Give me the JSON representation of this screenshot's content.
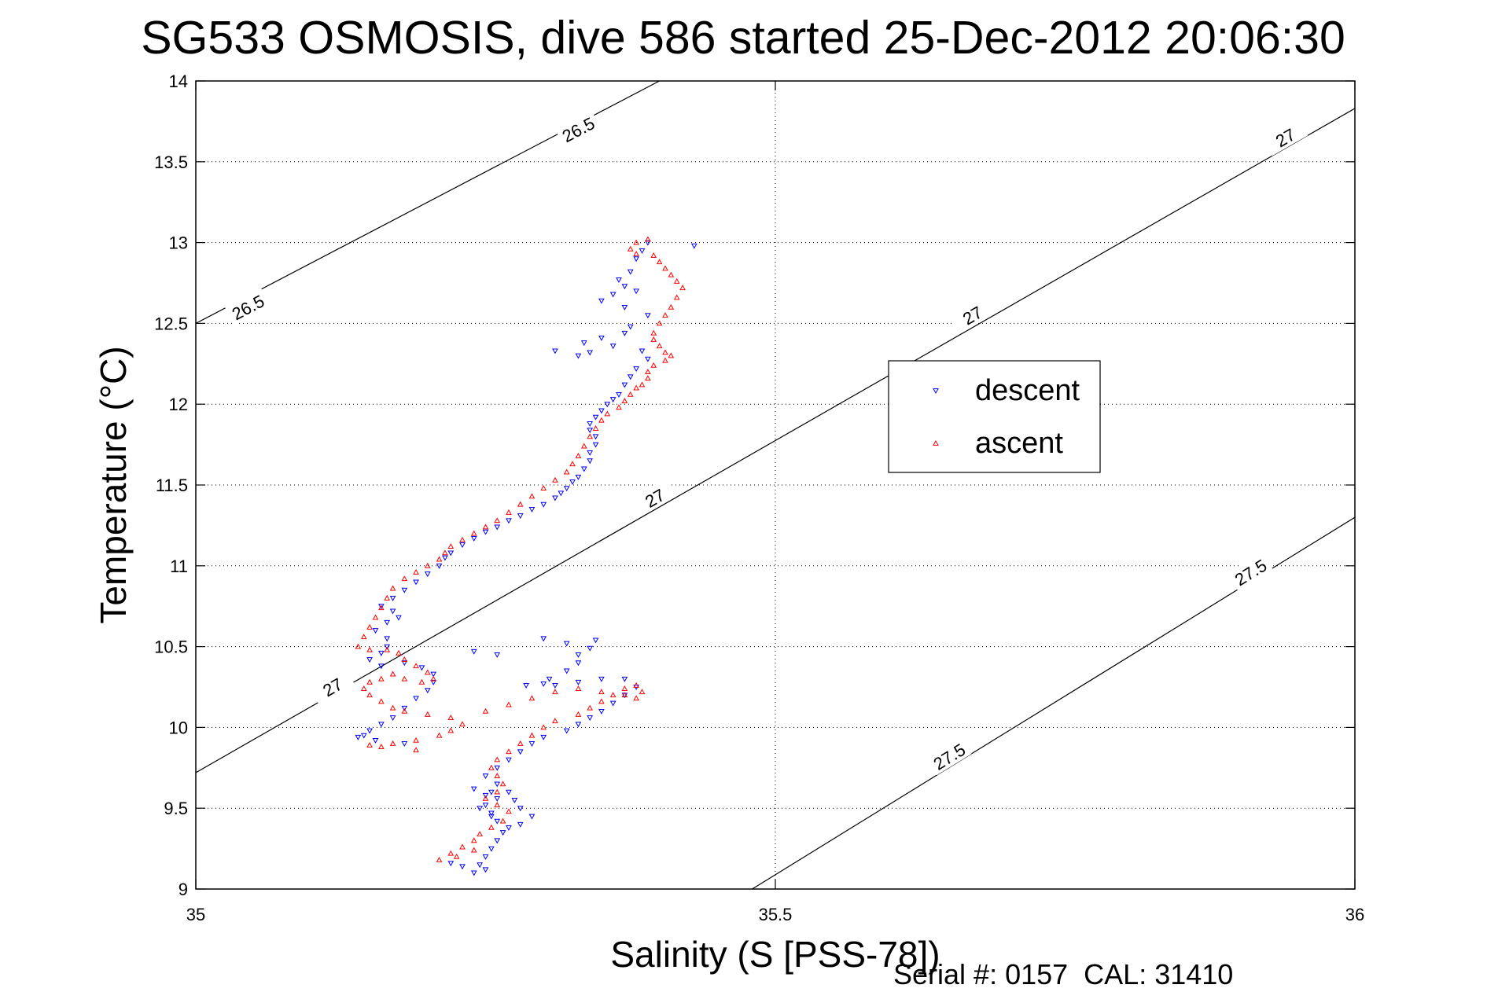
{
  "chart_data": {
    "type": "scatter",
    "title": "SG533 OSMOSIS, dive 586 started 25-Dec-2012 20:06:30",
    "xlabel": "Salinity (S [PSS-78])",
    "ylabel": "Temperature (°C)",
    "xlim": [
      35,
      36
    ],
    "ylim": [
      9,
      14
    ],
    "x_ticks": [
      "35",
      "35.5",
      "36"
    ],
    "y_ticks": [
      "9",
      "9.5",
      "10",
      "10.5",
      "11",
      "11.5",
      "12",
      "12.5",
      "13",
      "13.5",
      "14"
    ],
    "grid": true,
    "legend_placement": "right-center",
    "footer": "Serial #: 0157  CAL: 31410",
    "isopycnals": [
      {
        "label": "26.5",
        "points": [
          [
            35.0,
            12.5
          ],
          [
            35.4,
            14.0
          ]
        ]
      },
      {
        "label": "27",
        "points": [
          [
            35.0,
            9.72
          ],
          [
            36.0,
            13.83
          ]
        ]
      },
      {
        "label": "27.5",
        "points": [
          [
            35.48,
            9.0
          ],
          [
            36.0,
            11.3
          ]
        ]
      }
    ],
    "contour_labels": [
      {
        "text": "26.5",
        "x": 35.33,
        "y": 13.7
      },
      {
        "text": "26.5",
        "x": 35.045,
        "y": 12.6
      },
      {
        "text": "27",
        "x": 35.118,
        "y": 10.25
      },
      {
        "text": "27",
        "x": 35.396,
        "y": 11.42
      },
      {
        "text": "27",
        "x": 35.67,
        "y": 12.55
      },
      {
        "text": "27",
        "x": 35.94,
        "y": 13.65
      },
      {
        "text": "27.5",
        "x": 35.65,
        "y": 9.82
      },
      {
        "text": "27.5",
        "x": 35.91,
        "y": 10.96
      }
    ],
    "series": [
      {
        "name": "descent",
        "color": "#0000ff",
        "marker": "triangle-down",
        "points": [
          [
            35.43,
            12.98
          ],
          [
            35.39,
            13.0
          ],
          [
            35.385,
            12.95
          ],
          [
            35.38,
            12.9
          ],
          [
            35.375,
            12.82
          ],
          [
            35.365,
            12.77
          ],
          [
            35.37,
            12.73
          ],
          [
            35.38,
            12.7
          ],
          [
            35.36,
            12.68
          ],
          [
            35.35,
            12.64
          ],
          [
            35.37,
            12.6
          ],
          [
            35.39,
            12.55
          ],
          [
            35.375,
            12.48
          ],
          [
            35.37,
            12.44
          ],
          [
            35.35,
            12.41
          ],
          [
            35.335,
            12.38
          ],
          [
            35.31,
            12.33
          ],
          [
            35.33,
            12.3
          ],
          [
            35.34,
            12.32
          ],
          [
            35.36,
            12.36
          ],
          [
            35.385,
            12.33
          ],
          [
            35.39,
            12.28
          ],
          [
            35.38,
            12.22
          ],
          [
            35.375,
            12.17
          ],
          [
            35.37,
            12.12
          ],
          [
            35.365,
            12.06
          ],
          [
            35.36,
            12.03
          ],
          [
            35.355,
            12.0
          ],
          [
            35.35,
            11.96
          ],
          [
            35.345,
            11.92
          ],
          [
            35.34,
            11.88
          ],
          [
            35.34,
            11.84
          ],
          [
            35.345,
            11.8
          ],
          [
            35.345,
            11.75
          ],
          [
            35.34,
            11.7
          ],
          [
            35.34,
            11.65
          ],
          [
            35.335,
            11.6
          ],
          [
            35.33,
            11.55
          ],
          [
            35.325,
            11.52
          ],
          [
            35.32,
            11.48
          ],
          [
            35.315,
            11.45
          ],
          [
            35.31,
            11.42
          ],
          [
            35.3,
            11.38
          ],
          [
            35.29,
            11.35
          ],
          [
            35.28,
            11.31
          ],
          [
            35.27,
            11.28
          ],
          [
            35.26,
            11.24
          ],
          [
            35.25,
            11.21
          ],
          [
            35.24,
            11.17
          ],
          [
            35.23,
            11.13
          ],
          [
            35.22,
            11.08
          ],
          [
            35.215,
            11.05
          ],
          [
            35.21,
            11.0
          ],
          [
            35.2,
            10.95
          ],
          [
            35.19,
            10.9
          ],
          [
            35.18,
            10.85
          ],
          [
            35.17,
            10.8
          ],
          [
            35.16,
            10.75
          ],
          [
            35.17,
            10.72
          ],
          [
            35.175,
            10.68
          ],
          [
            35.165,
            10.65
          ],
          [
            35.155,
            10.6
          ],
          [
            35.165,
            10.55
          ],
          [
            35.165,
            10.5
          ],
          [
            35.16,
            10.46
          ],
          [
            35.15,
            10.42
          ],
          [
            35.16,
            10.38
          ],
          [
            35.18,
            10.4
          ],
          [
            35.195,
            10.37
          ],
          [
            35.205,
            10.33
          ],
          [
            35.205,
            10.28
          ],
          [
            35.2,
            10.23
          ],
          [
            35.19,
            10.18
          ],
          [
            35.18,
            10.12
          ],
          [
            35.17,
            10.06
          ],
          [
            35.16,
            10.02
          ],
          [
            35.15,
            9.98
          ],
          [
            35.145,
            9.95
          ],
          [
            35.14,
            9.94
          ],
          [
            35.155,
            9.92
          ],
          [
            35.18,
            9.9
          ],
          [
            35.24,
            10.47
          ],
          [
            35.26,
            10.45
          ],
          [
            35.3,
            10.55
          ],
          [
            35.32,
            10.52
          ],
          [
            35.345,
            10.54
          ],
          [
            35.34,
            10.49
          ],
          [
            35.33,
            10.45
          ],
          [
            35.33,
            10.4
          ],
          [
            35.32,
            10.35
          ],
          [
            35.305,
            10.3
          ],
          [
            35.3,
            10.27
          ],
          [
            35.285,
            10.26
          ],
          [
            35.31,
            10.26
          ],
          [
            35.33,
            10.28
          ],
          [
            35.35,
            10.3
          ],
          [
            35.37,
            10.3
          ],
          [
            35.38,
            10.25
          ],
          [
            35.37,
            10.2
          ],
          [
            35.36,
            10.15
          ],
          [
            35.35,
            10.1
          ],
          [
            35.34,
            10.06
          ],
          [
            35.33,
            10.02
          ],
          [
            35.32,
            9.98
          ],
          [
            35.3,
            9.94
          ],
          [
            35.29,
            9.9
          ],
          [
            35.28,
            9.85
          ],
          [
            35.27,
            9.8
          ],
          [
            35.26,
            9.75
          ],
          [
            35.25,
            9.7
          ],
          [
            35.26,
            9.65
          ],
          [
            35.27,
            9.6
          ],
          [
            35.275,
            9.55
          ],
          [
            35.28,
            9.5
          ],
          [
            35.29,
            9.45
          ],
          [
            35.28,
            9.4
          ],
          [
            35.27,
            9.38
          ],
          [
            35.26,
            9.42
          ],
          [
            35.255,
            9.47
          ],
          [
            35.25,
            9.52
          ],
          [
            35.26,
            9.56
          ],
          [
            35.255,
            9.6
          ],
          [
            35.24,
            9.62
          ],
          [
            35.25,
            9.58
          ],
          [
            35.245,
            9.5
          ],
          [
            35.255,
            9.45
          ],
          [
            35.265,
            9.35
          ],
          [
            35.26,
            9.3
          ],
          [
            35.255,
            9.25
          ],
          [
            35.25,
            9.2
          ],
          [
            35.245,
            9.15
          ],
          [
            35.25,
            9.12
          ],
          [
            35.24,
            9.1
          ],
          [
            35.23,
            9.14
          ],
          [
            35.22,
            9.16
          ]
        ]
      },
      {
        "name": "ascent",
        "color": "#ff0000",
        "marker": "triangle-up",
        "points": [
          [
            35.39,
            13.02
          ],
          [
            35.38,
            13.0
          ],
          [
            35.375,
            12.96
          ],
          [
            35.38,
            12.93
          ],
          [
            35.395,
            12.92
          ],
          [
            35.4,
            12.88
          ],
          [
            35.405,
            12.84
          ],
          [
            35.41,
            12.8
          ],
          [
            35.415,
            12.76
          ],
          [
            35.42,
            12.72
          ],
          [
            35.415,
            12.66
          ],
          [
            35.41,
            12.6
          ],
          [
            35.405,
            12.55
          ],
          [
            35.4,
            12.5
          ],
          [
            35.395,
            12.44
          ],
          [
            35.395,
            12.4
          ],
          [
            35.4,
            12.36
          ],
          [
            35.405,
            12.32
          ],
          [
            35.41,
            12.3
          ],
          [
            35.405,
            12.27
          ],
          [
            35.395,
            12.24
          ],
          [
            35.39,
            12.2
          ],
          [
            35.39,
            12.16
          ],
          [
            35.385,
            12.12
          ],
          [
            35.38,
            12.1
          ],
          [
            35.375,
            12.06
          ],
          [
            35.37,
            12.02
          ],
          [
            35.365,
            11.98
          ],
          [
            35.355,
            11.94
          ],
          [
            35.35,
            11.9
          ],
          [
            35.345,
            11.85
          ],
          [
            35.34,
            11.8
          ],
          [
            35.335,
            11.74
          ],
          [
            35.33,
            11.68
          ],
          [
            35.325,
            11.63
          ],
          [
            35.32,
            11.58
          ],
          [
            35.31,
            11.53
          ],
          [
            35.3,
            11.48
          ],
          [
            35.29,
            11.43
          ],
          [
            35.28,
            11.38
          ],
          [
            35.27,
            11.33
          ],
          [
            35.26,
            11.28
          ],
          [
            35.25,
            11.24
          ],
          [
            35.24,
            11.2
          ],
          [
            35.23,
            11.16
          ],
          [
            35.22,
            11.12
          ],
          [
            35.215,
            11.08
          ],
          [
            35.21,
            11.04
          ],
          [
            35.2,
            11.0
          ],
          [
            35.19,
            10.96
          ],
          [
            35.18,
            10.92
          ],
          [
            35.17,
            10.86
          ],
          [
            35.165,
            10.8
          ],
          [
            35.16,
            10.74
          ],
          [
            35.155,
            10.68
          ],
          [
            35.15,
            10.62
          ],
          [
            35.145,
            10.56
          ],
          [
            35.14,
            10.5
          ],
          [
            35.15,
            10.48
          ],
          [
            35.165,
            10.48
          ],
          [
            35.175,
            10.46
          ],
          [
            35.18,
            10.42
          ],
          [
            35.19,
            10.38
          ],
          [
            35.2,
            10.34
          ],
          [
            35.205,
            10.3
          ],
          [
            35.195,
            10.28
          ],
          [
            35.18,
            10.3
          ],
          [
            35.17,
            10.33
          ],
          [
            35.16,
            10.3
          ],
          [
            35.15,
            10.28
          ],
          [
            35.145,
            10.24
          ],
          [
            35.15,
            10.2
          ],
          [
            35.16,
            10.16
          ],
          [
            35.17,
            10.12
          ],
          [
            35.18,
            10.1
          ],
          [
            35.2,
            10.08
          ],
          [
            35.22,
            10.06
          ],
          [
            35.23,
            10.02
          ],
          [
            35.22,
            9.98
          ],
          [
            35.21,
            9.95
          ],
          [
            35.19,
            9.92
          ],
          [
            35.17,
            9.9
          ],
          [
            35.16,
            9.88
          ],
          [
            35.15,
            9.89
          ],
          [
            35.19,
            9.86
          ],
          [
            35.25,
            10.1
          ],
          [
            35.27,
            10.14
          ],
          [
            35.29,
            10.18
          ],
          [
            35.31,
            10.22
          ],
          [
            35.33,
            10.24
          ],
          [
            35.35,
            10.22
          ],
          [
            35.37,
            10.2
          ],
          [
            35.38,
            10.18
          ],
          [
            35.385,
            10.22
          ],
          [
            35.38,
            10.26
          ],
          [
            35.37,
            10.24
          ],
          [
            35.36,
            10.2
          ],
          [
            35.35,
            10.16
          ],
          [
            35.34,
            10.12
          ],
          [
            35.33,
            10.08
          ],
          [
            35.31,
            10.04
          ],
          [
            35.3,
            10.0
          ],
          [
            35.29,
            9.95
          ],
          [
            35.28,
            9.9
          ],
          [
            35.27,
            9.85
          ],
          [
            35.26,
            9.8
          ],
          [
            35.255,
            9.75
          ],
          [
            35.26,
            9.7
          ],
          [
            35.265,
            9.65
          ],
          [
            35.26,
            9.6
          ],
          [
            35.25,
            9.56
          ],
          [
            35.26,
            9.52
          ],
          [
            35.27,
            9.48
          ],
          [
            35.265,
            9.42
          ],
          [
            35.255,
            9.38
          ],
          [
            35.245,
            9.34
          ],
          [
            35.24,
            9.3
          ],
          [
            35.23,
            9.26
          ],
          [
            35.22,
            9.22
          ],
          [
            35.21,
            9.18
          ],
          [
            35.225,
            9.2
          ],
          [
            35.24,
            9.24
          ]
        ]
      }
    ]
  }
}
